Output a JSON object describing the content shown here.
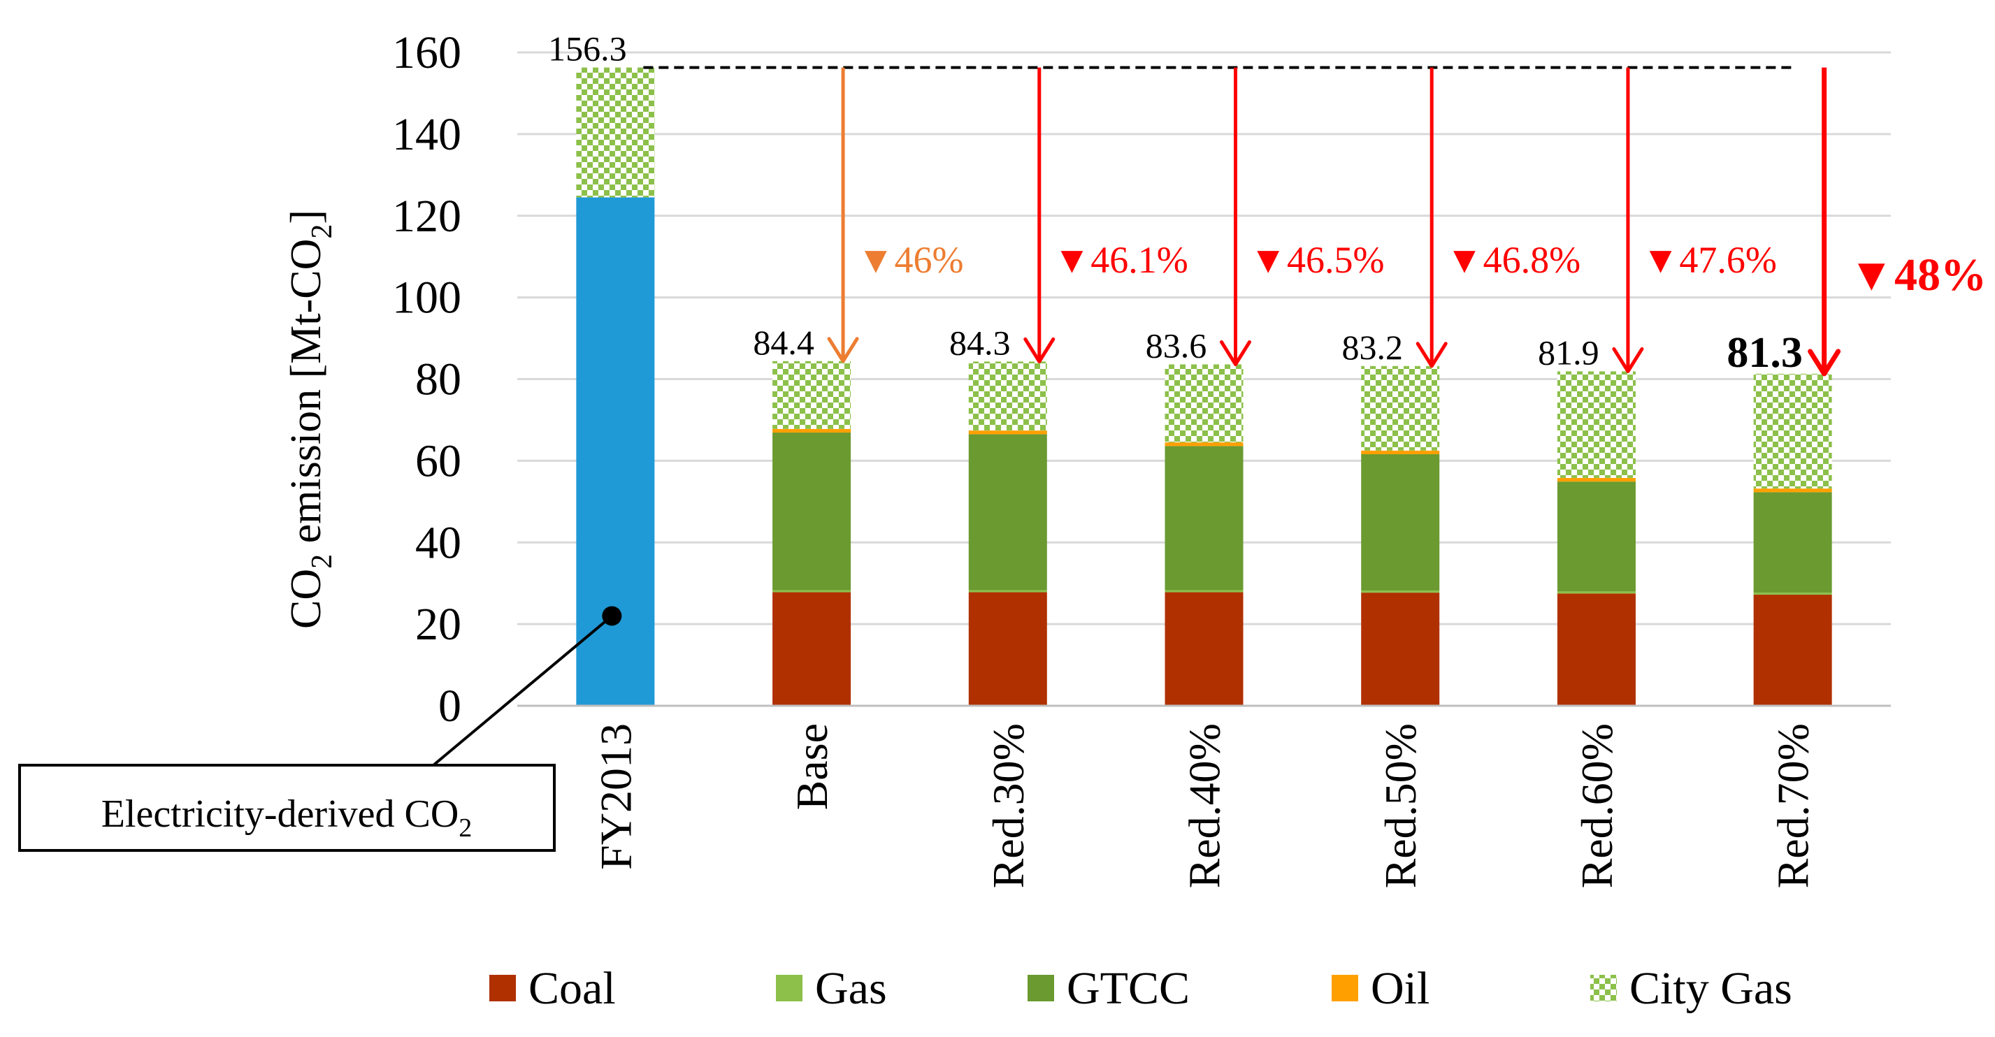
{
  "chart_data": {
    "type": "bar",
    "stacked": true,
    "ylabel_parts": [
      "CO",
      "2",
      " emission [Mt-CO",
      "2",
      "]"
    ],
    "ylim": [
      0,
      160
    ],
    "yticks": [
      0,
      20,
      40,
      60,
      80,
      100,
      120,
      140,
      160
    ],
    "grid": true,
    "categories": [
      "FY2013",
      "Base",
      "Red.30%",
      "Red.40%",
      "Red.50%",
      "Red.60%",
      "Red.70%"
    ],
    "series": [
      {
        "name": "Electricity-derived CO2",
        "color": "#1f9ad6",
        "pattern": "solid",
        "values": [
          124.5,
          0,
          0,
          0,
          0,
          0,
          0
        ]
      },
      {
        "name": "Coal",
        "color": "#b03000",
        "pattern": "solid",
        "values": [
          0,
          27.8,
          27.8,
          27.8,
          27.7,
          27.5,
          27.2
        ]
      },
      {
        "name": "Gas",
        "color": "#8cc04a",
        "pattern": "solid",
        "values": [
          0,
          0.5,
          0.5,
          0.5,
          0.5,
          0.5,
          0.5
        ]
      },
      {
        "name": "GTCC",
        "color": "#6a9a30",
        "pattern": "solid",
        "values": [
          0,
          38.6,
          38.2,
          35.3,
          33.4,
          26.9,
          24.6
        ]
      },
      {
        "name": "Oil",
        "color": "#ffa000",
        "pattern": "solid",
        "values": [
          0,
          0.9,
          0.9,
          0.9,
          0.9,
          0.9,
          0.9
        ]
      },
      {
        "name": "City Gas",
        "color": "#8cc04a",
        "pattern": "checker",
        "values": [
          31.8,
          16.6,
          16.9,
          19.1,
          20.7,
          26.1,
          28.1
        ]
      }
    ],
    "legend": [
      "Coal",
      "Gas",
      "GTCC",
      "Oil",
      "City Gas"
    ],
    "totals": [
      "156.3",
      "84.4",
      "84.3",
      "83.6",
      "83.2",
      "81.9",
      "81.3"
    ],
    "total_values": [
      156.3,
      84.4,
      84.3,
      83.6,
      83.2,
      81.9,
      81.3
    ],
    "bold_total_index": 6,
    "reduction_labels": [
      "",
      "▼46%",
      "▼46.1%",
      "▼46.5%",
      "▼46.8%",
      "▼47.6%",
      "▼48%"
    ],
    "reduction_colors": [
      "",
      "#ed7d31",
      "#ff0000",
      "#ff0000",
      "#ff0000",
      "#ff0000",
      "#ff0000"
    ],
    "reference_level": 156.3,
    "callout_parts": [
      "Electricity-derived CO",
      "2"
    ],
    "callout_value": 22
  }
}
